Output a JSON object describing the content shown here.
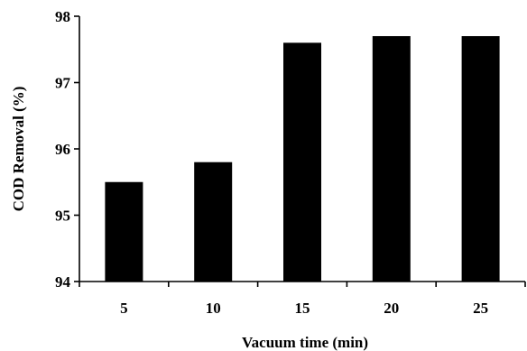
{
  "chart_data": {
    "type": "bar",
    "title": "",
    "xlabel": "Vacuum time (min)",
    "ylabel": "COD Removal (%)",
    "categories": [
      "5",
      "10",
      "15",
      "20",
      "25"
    ],
    "values": [
      95.5,
      95.8,
      97.6,
      97.7,
      97.7
    ],
    "ylim": [
      94,
      98
    ],
    "yticks": [
      "94",
      "95",
      "96",
      "97",
      "98"
    ],
    "grid": false,
    "legend": "none",
    "bar_color": "#000000",
    "axis_color": "#000000"
  }
}
